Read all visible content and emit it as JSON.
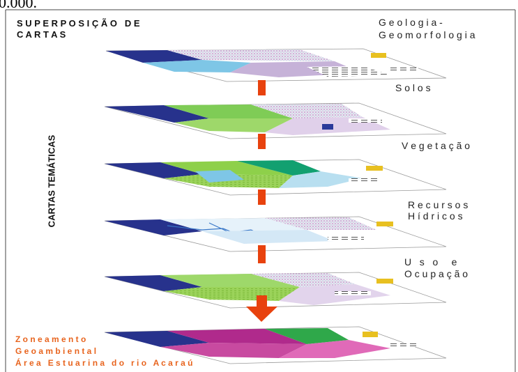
{
  "caption_fragment": "0.000.",
  "title": {
    "line1": "S U P E R P O S I Ç Ã O   D E",
    "line2": "C A R T A S"
  },
  "side_label": "CARTAS TEMÁTICAS",
  "layers": [
    {
      "name": "geologia",
      "label_lines": [
        "G e o l o g i a -",
        "G e o m o r f o l o g i a"
      ]
    },
    {
      "name": "solos",
      "label_lines": [
        "S o l o s"
      ]
    },
    {
      "name": "vegetacao",
      "label_lines": [
        "V e g e t a ç ã o"
      ]
    },
    {
      "name": "recursos-hidricos",
      "label_lines": [
        "R e c u r s o s",
        "H í d r i c o s"
      ]
    },
    {
      "name": "uso-ocupacao",
      "label_lines": [
        "U   s   o     e",
        "O c u p a ç ã o"
      ]
    }
  ],
  "result": {
    "label_lines": [
      "Z o n e a m e n t o",
      "G e o a m b i e n t a l",
      "Á r e a   E s t u a r i n a   d o   r i o   A c a r a ú"
    ],
    "color": "#e8641e"
  },
  "colors": {
    "arrow": "#e8420e",
    "sea": "#27328c",
    "land_green": "#8ed04a",
    "water": "#7ec6e6",
    "result_magenta": "#b02a8c"
  }
}
